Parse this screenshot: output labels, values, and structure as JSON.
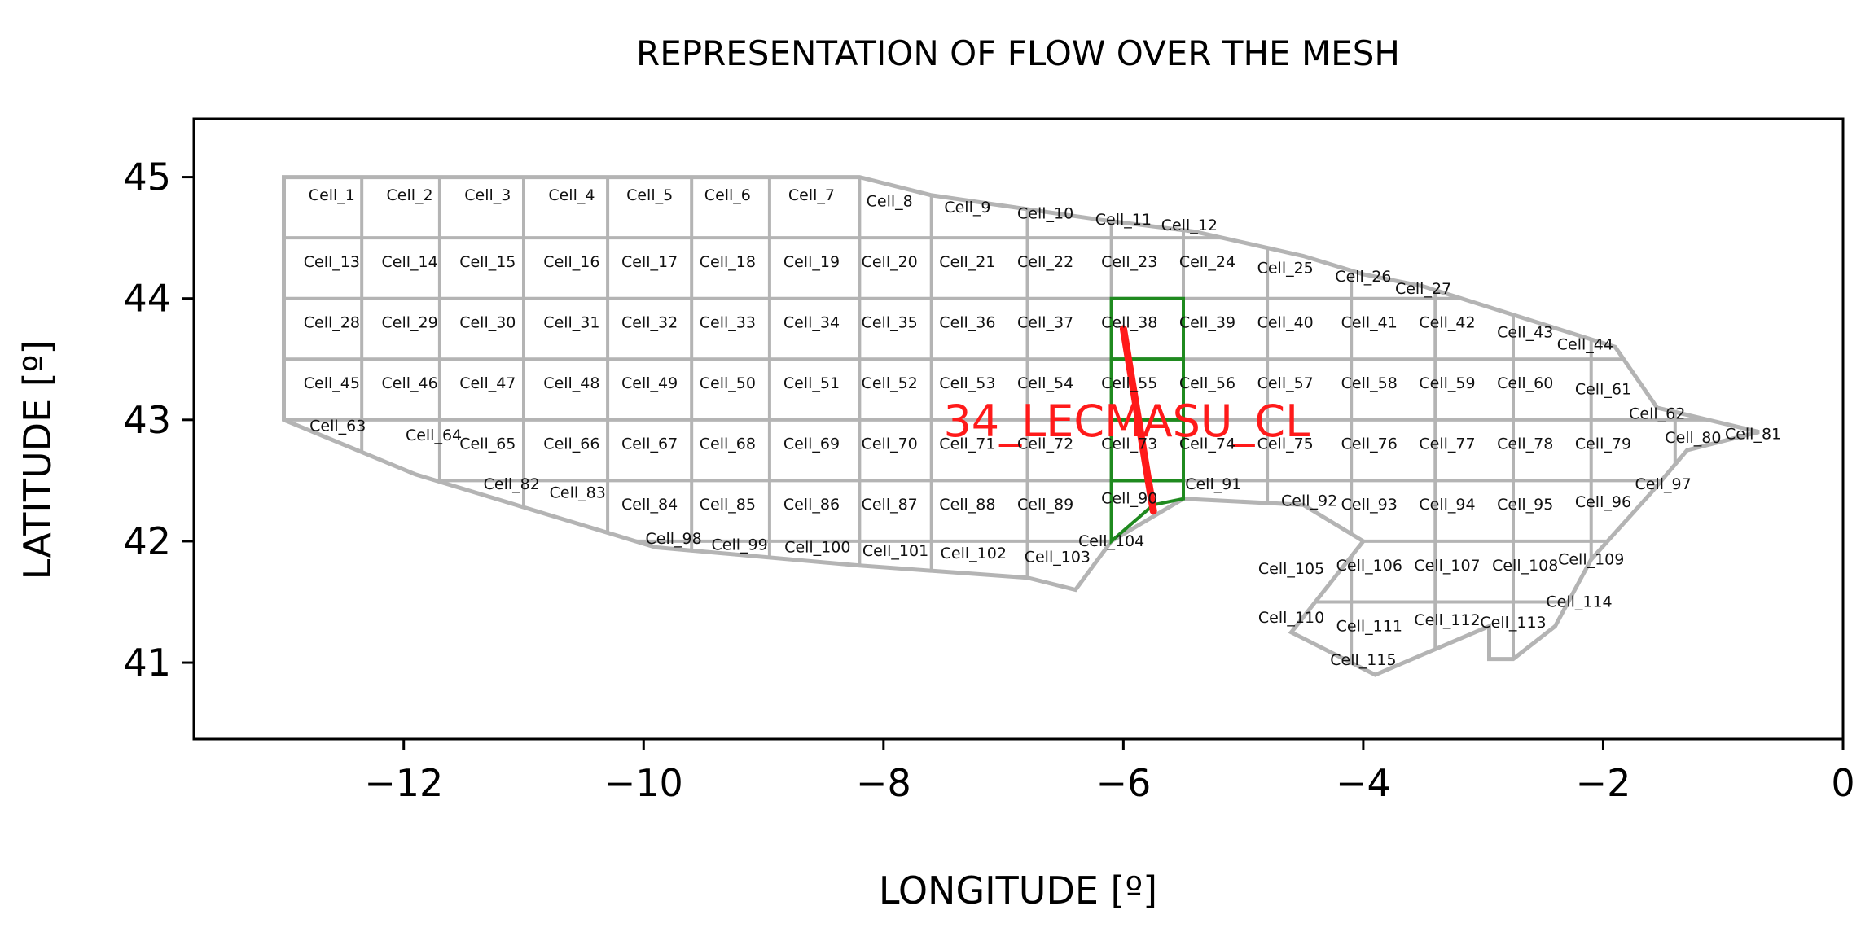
{
  "chart_data": {
    "type": "scatter",
    "title": "REPRESENTATION  OF FLOW OVER THE MESH",
    "xlabel": "LONGITUDE [º]",
    "ylabel": "LATITUDE [º]",
    "xlim": [
      -13.75,
      0
    ],
    "ylim": [
      40.37,
      45.48
    ],
    "xticks": [
      -12,
      -10,
      -8,
      -6,
      -4,
      -2,
      0
    ],
    "yticks": [
      41,
      42,
      43,
      44,
      45
    ],
    "xtick_labels": [
      "−12",
      "−10",
      "−8",
      "−6",
      "−4",
      "−2",
      "0"
    ],
    "ytick_labels": [
      "41",
      "42",
      "43",
      "44",
      "45"
    ],
    "grid": false,
    "colors": {
      "mesh": "#b4b4b4",
      "highlight": "#1f8a1f",
      "route": "#ff1a1a"
    },
    "mesh_outline": [
      [
        -13.0,
        45.0
      ],
      [
        -8.2,
        45.0
      ],
      [
        -7.6,
        44.85
      ],
      [
        -6.2,
        44.65
      ],
      [
        -5.4,
        44.55
      ],
      [
        -4.5,
        44.35
      ],
      [
        -4.0,
        44.2
      ],
      [
        -3.5,
        44.1
      ],
      [
        -2.7,
        43.85
      ],
      [
        -1.9,
        43.6
      ],
      [
        -1.55,
        43.1
      ],
      [
        -0.7,
        42.9
      ],
      [
        -1.3,
        42.75
      ],
      [
        -1.6,
        42.4
      ],
      [
        -2.1,
        41.85
      ],
      [
        -2.4,
        41.3
      ],
      [
        -2.75,
        41.03
      ],
      [
        -2.95,
        41.03
      ],
      [
        -2.95,
        41.3
      ],
      [
        -3.9,
        40.9
      ],
      [
        -4.6,
        41.25
      ],
      [
        -4.0,
        42.0
      ],
      [
        -4.5,
        42.3
      ],
      [
        -5.5,
        42.35
      ],
      [
        -6.1,
        42.0
      ],
      [
        -6.4,
        41.6
      ],
      [
        -6.8,
        41.7
      ],
      [
        -8.2,
        41.8
      ],
      [
        -9.9,
        41.95
      ],
      [
        -11.9,
        42.55
      ],
      [
        -13.0,
        43.0
      ],
      [
        -13.0,
        45.0
      ]
    ],
    "highlight_cells": [
      [
        [
          -6.1,
          44.0
        ],
        [
          -5.5,
          44.0
        ],
        [
          -5.5,
          43.5
        ],
        [
          -6.1,
          43.5
        ]
      ],
      [
        [
          -6.1,
          43.5
        ],
        [
          -5.5,
          43.5
        ],
        [
          -5.5,
          43.0
        ],
        [
          -6.1,
          43.0
        ]
      ],
      [
        [
          -6.1,
          43.0
        ],
        [
          -5.5,
          43.0
        ],
        [
          -5.5,
          42.5
        ],
        [
          -6.1,
          42.5
        ]
      ],
      [
        [
          -6.1,
          42.5
        ],
        [
          -5.5,
          42.5
        ],
        [
          -5.5,
          42.35
        ],
        [
          -5.75,
          42.3
        ],
        [
          -6.1,
          42.0
        ]
      ]
    ],
    "route": {
      "label": "34_LECMASU_CL",
      "label_position": [
        -7.5,
        43.0
      ],
      "path": [
        [
          -6.0,
          43.75
        ],
        [
          -5.75,
          42.25
        ]
      ]
    },
    "cells": [
      {
        "label": "Cell_1",
        "x": -12.6,
        "y": 44.85
      },
      {
        "label": "Cell_2",
        "x": -11.95,
        "y": 44.85
      },
      {
        "label": "Cell_3",
        "x": -11.3,
        "y": 44.85
      },
      {
        "label": "Cell_4",
        "x": -10.6,
        "y": 44.85
      },
      {
        "label": "Cell_5",
        "x": -9.95,
        "y": 44.85
      },
      {
        "label": "Cell_6",
        "x": -9.3,
        "y": 44.85
      },
      {
        "label": "Cell_7",
        "x": -8.6,
        "y": 44.85
      },
      {
        "label": "Cell_8",
        "x": -7.95,
        "y": 44.8
      },
      {
        "label": "Cell_9",
        "x": -7.3,
        "y": 44.75
      },
      {
        "label": "Cell_10",
        "x": -6.65,
        "y": 44.7
      },
      {
        "label": "Cell_11",
        "x": -6.0,
        "y": 44.65
      },
      {
        "label": "Cell_12",
        "x": -5.45,
        "y": 44.6
      },
      {
        "label": "Cell_13",
        "x": -12.6,
        "y": 44.3
      },
      {
        "label": "Cell_14",
        "x": -11.95,
        "y": 44.3
      },
      {
        "label": "Cell_15",
        "x": -11.3,
        "y": 44.3
      },
      {
        "label": "Cell_16",
        "x": -10.6,
        "y": 44.3
      },
      {
        "label": "Cell_17",
        "x": -9.95,
        "y": 44.3
      },
      {
        "label": "Cell_18",
        "x": -9.3,
        "y": 44.3
      },
      {
        "label": "Cell_19",
        "x": -8.6,
        "y": 44.3
      },
      {
        "label": "Cell_20",
        "x": -7.95,
        "y": 44.3
      },
      {
        "label": "Cell_21",
        "x": -7.3,
        "y": 44.3
      },
      {
        "label": "Cell_22",
        "x": -6.65,
        "y": 44.3
      },
      {
        "label": "Cell_23",
        "x": -5.95,
        "y": 44.3
      },
      {
        "label": "Cell_24",
        "x": -5.3,
        "y": 44.3
      },
      {
        "label": "Cell_25",
        "x": -4.65,
        "y": 44.25
      },
      {
        "label": "Cell_26",
        "x": -4.0,
        "y": 44.18
      },
      {
        "label": "Cell_27",
        "x": -3.5,
        "y": 44.08
      },
      {
        "label": "Cell_28",
        "x": -12.6,
        "y": 43.8
      },
      {
        "label": "Cell_29",
        "x": -11.95,
        "y": 43.8
      },
      {
        "label": "Cell_30",
        "x": -11.3,
        "y": 43.8
      },
      {
        "label": "Cell_31",
        "x": -10.6,
        "y": 43.8
      },
      {
        "label": "Cell_32",
        "x": -9.95,
        "y": 43.8
      },
      {
        "label": "Cell_33",
        "x": -9.3,
        "y": 43.8
      },
      {
        "label": "Cell_34",
        "x": -8.6,
        "y": 43.8
      },
      {
        "label": "Cell_35",
        "x": -7.95,
        "y": 43.8
      },
      {
        "label": "Cell_36",
        "x": -7.3,
        "y": 43.8
      },
      {
        "label": "Cell_37",
        "x": -6.65,
        "y": 43.8
      },
      {
        "label": "Cell_38",
        "x": -5.95,
        "y": 43.8
      },
      {
        "label": "Cell_39",
        "x": -5.3,
        "y": 43.8
      },
      {
        "label": "Cell_40",
        "x": -4.65,
        "y": 43.8
      },
      {
        "label": "Cell_41",
        "x": -3.95,
        "y": 43.8
      },
      {
        "label": "Cell_42",
        "x": -3.3,
        "y": 43.8
      },
      {
        "label": "Cell_43",
        "x": -2.65,
        "y": 43.72
      },
      {
        "label": "Cell_44",
        "x": -2.15,
        "y": 43.62
      },
      {
        "label": "Cell_45",
        "x": -12.6,
        "y": 43.3
      },
      {
        "label": "Cell_46",
        "x": -11.95,
        "y": 43.3
      },
      {
        "label": "Cell_47",
        "x": -11.3,
        "y": 43.3
      },
      {
        "label": "Cell_48",
        "x": -10.6,
        "y": 43.3
      },
      {
        "label": "Cell_49",
        "x": -9.95,
        "y": 43.3
      },
      {
        "label": "Cell_50",
        "x": -9.3,
        "y": 43.3
      },
      {
        "label": "Cell_51",
        "x": -8.6,
        "y": 43.3
      },
      {
        "label": "Cell_52",
        "x": -7.95,
        "y": 43.3
      },
      {
        "label": "Cell_53",
        "x": -7.3,
        "y": 43.3
      },
      {
        "label": "Cell_54",
        "x": -6.65,
        "y": 43.3
      },
      {
        "label": "Cell_55",
        "x": -5.95,
        "y": 43.3
      },
      {
        "label": "Cell_56",
        "x": -5.3,
        "y": 43.3
      },
      {
        "label": "Cell_57",
        "x": -4.65,
        "y": 43.3
      },
      {
        "label": "Cell_58",
        "x": -3.95,
        "y": 43.3
      },
      {
        "label": "Cell_59",
        "x": -3.3,
        "y": 43.3
      },
      {
        "label": "Cell_60",
        "x": -2.65,
        "y": 43.3
      },
      {
        "label": "Cell_61",
        "x": -2.0,
        "y": 43.25
      },
      {
        "label": "Cell_62",
        "x": -1.55,
        "y": 43.05
      },
      {
        "label": "Cell_63",
        "x": -12.55,
        "y": 42.95
      },
      {
        "label": "Cell_64",
        "x": -11.75,
        "y": 42.87
      },
      {
        "label": "Cell_65",
        "x": -11.3,
        "y": 42.8
      },
      {
        "label": "Cell_66",
        "x": -10.6,
        "y": 42.8
      },
      {
        "label": "Cell_67",
        "x": -9.95,
        "y": 42.8
      },
      {
        "label": "Cell_68",
        "x": -9.3,
        "y": 42.8
      },
      {
        "label": "Cell_69",
        "x": -8.6,
        "y": 42.8
      },
      {
        "label": "Cell_70",
        "x": -7.95,
        "y": 42.8
      },
      {
        "label": "Cell_71",
        "x": -7.3,
        "y": 42.8
      },
      {
        "label": "Cell_72",
        "x": -6.65,
        "y": 42.8
      },
      {
        "label": "Cell_73",
        "x": -5.95,
        "y": 42.8
      },
      {
        "label": "Cell_74",
        "x": -5.3,
        "y": 42.8
      },
      {
        "label": "Cell_75",
        "x": -4.65,
        "y": 42.8
      },
      {
        "label": "Cell_76",
        "x": -3.95,
        "y": 42.8
      },
      {
        "label": "Cell_77",
        "x": -3.3,
        "y": 42.8
      },
      {
        "label": "Cell_78",
        "x": -2.65,
        "y": 42.8
      },
      {
        "label": "Cell_79",
        "x": -2.0,
        "y": 42.8
      },
      {
        "label": "Cell_80",
        "x": -1.25,
        "y": 42.85
      },
      {
        "label": "Cell_81",
        "x": -0.75,
        "y": 42.88
      },
      {
        "label": "Cell_82",
        "x": -11.1,
        "y": 42.47
      },
      {
        "label": "Cell_83",
        "x": -10.55,
        "y": 42.4
      },
      {
        "label": "Cell_84",
        "x": -9.95,
        "y": 42.3
      },
      {
        "label": "Cell_85",
        "x": -9.3,
        "y": 42.3
      },
      {
        "label": "Cell_86",
        "x": -8.6,
        "y": 42.3
      },
      {
        "label": "Cell_87",
        "x": -7.95,
        "y": 42.3
      },
      {
        "label": "Cell_88",
        "x": -7.3,
        "y": 42.3
      },
      {
        "label": "Cell_89",
        "x": -6.65,
        "y": 42.3
      },
      {
        "label": "Cell_90",
        "x": -5.95,
        "y": 42.35
      },
      {
        "label": "Cell_91",
        "x": -5.25,
        "y": 42.47
      },
      {
        "label": "Cell_92",
        "x": -4.45,
        "y": 42.33
      },
      {
        "label": "Cell_93",
        "x": -3.95,
        "y": 42.3
      },
      {
        "label": "Cell_94",
        "x": -3.3,
        "y": 42.3
      },
      {
        "label": "Cell_95",
        "x": -2.65,
        "y": 42.3
      },
      {
        "label": "Cell_96",
        "x": -2.0,
        "y": 42.32
      },
      {
        "label": "Cell_97",
        "x": -1.5,
        "y": 42.47
      },
      {
        "label": "Cell_98",
        "x": -9.75,
        "y": 42.02
      },
      {
        "label": "Cell_99",
        "x": -9.2,
        "y": 41.97
      },
      {
        "label": "Cell_100",
        "x": -8.55,
        "y": 41.95
      },
      {
        "label": "Cell_101",
        "x": -7.9,
        "y": 41.92
      },
      {
        "label": "Cell_102",
        "x": -7.25,
        "y": 41.9
      },
      {
        "label": "Cell_103",
        "x": -6.55,
        "y": 41.87
      },
      {
        "label": "Cell_104",
        "x": -6.1,
        "y": 42.0
      },
      {
        "label": "Cell_105",
        "x": -4.6,
        "y": 41.77
      },
      {
        "label": "Cell_106",
        "x": -3.95,
        "y": 41.8
      },
      {
        "label": "Cell_107",
        "x": -3.3,
        "y": 41.8
      },
      {
        "label": "Cell_108",
        "x": -2.65,
        "y": 41.8
      },
      {
        "label": "Cell_109",
        "x": -2.1,
        "y": 41.85
      },
      {
        "label": "Cell_110",
        "x": -4.6,
        "y": 41.37
      },
      {
        "label": "Cell_111",
        "x": -3.95,
        "y": 41.3
      },
      {
        "label": "Cell_112",
        "x": -3.3,
        "y": 41.35
      },
      {
        "label": "Cell_113",
        "x": -2.75,
        "y": 41.33
      },
      {
        "label": "Cell_114",
        "x": -2.2,
        "y": 41.5
      },
      {
        "label": "Cell_115",
        "x": -4.0,
        "y": 41.02
      }
    ]
  }
}
